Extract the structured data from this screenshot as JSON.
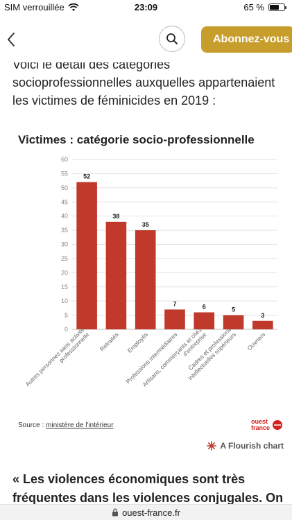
{
  "status_bar": {
    "carrier": "SIM verrouillée",
    "time": "23:09",
    "battery_text": "65 %",
    "battery_level": 0.65
  },
  "header": {
    "subscribe_label": "Abonnez-vous"
  },
  "article": {
    "intro_lines": [
      "Voici le détail des catégories",
      "socioprofessionnelles auxquelles appartenaient",
      "les victimes de féminicides en 2019 :"
    ],
    "quote_lines": [
      "« Les violences économiques sont très",
      "fréquentes dans les violences conjugales. On"
    ]
  },
  "chart_data": {
    "type": "bar",
    "title": "Victimes : catégorie socio-professionnelle",
    "categories": [
      "Autres personnes sans activité professionnelle",
      "Retraités",
      "Employés",
      "Professions intermédiaires",
      "Artisans, commerçants et chez d'entreprise",
      "Cadres et professions intellectuelles supérieurs",
      "Ouvriers"
    ],
    "category_label_lines": [
      [
        "Autres personnes sans activité",
        "professionnelle"
      ],
      [
        "Retraités"
      ],
      [
        "Employés"
      ],
      [
        "Professions intermédiaires"
      ],
      [
        "Artisans, commerçants et chez",
        "d'entreprise"
      ],
      [
        "Cadres et professions",
        "intellectuelles supérieurs"
      ],
      [
        "Ouvriers"
      ]
    ],
    "values": [
      52,
      38,
      35,
      7,
      6,
      5,
      3
    ],
    "ylim": [
      0,
      60
    ],
    "yticks": [
      0,
      5,
      10,
      15,
      20,
      25,
      30,
      35,
      40,
      45,
      50,
      55,
      60
    ],
    "bar_color": "#c0392b",
    "grid": true,
    "source_label": "Source : ",
    "source_link": "ministère de l'intérieur"
  },
  "branding": {
    "logo_text_1": "ouest",
    "logo_text_2": "france",
    "flourish_label": "A Flourish chart"
  },
  "url_bar": {
    "domain": "ouest-france.fr"
  },
  "icons": {
    "back": "chevron-left-icon",
    "search": "search-icon",
    "wifi": "wifi-icon",
    "lock": "lock-icon"
  }
}
